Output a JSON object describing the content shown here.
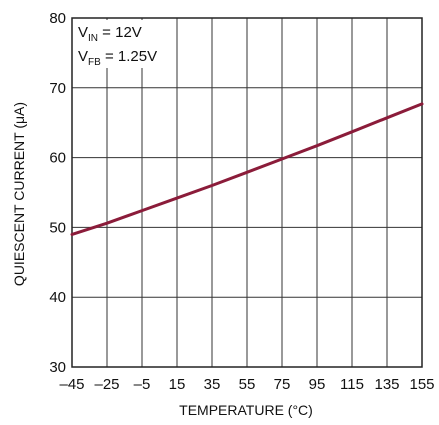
{
  "chart_data": {
    "type": "line",
    "xlabel": "TEMPERATURE (°C)",
    "ylabel": "QUIESCENT CURRENT (μA)",
    "xlim": [
      -45,
      155
    ],
    "ylim": [
      30,
      80
    ],
    "x_ticks": [
      -45,
      -25,
      -5,
      15,
      35,
      55,
      75,
      95,
      115,
      135,
      155
    ],
    "x_tick_labels": [
      "–45",
      "–25",
      "–5",
      "15",
      "35",
      "55",
      "75",
      "95",
      "115",
      "135",
      "155"
    ],
    "y_ticks": [
      30,
      40,
      50,
      60,
      70,
      80
    ],
    "y_tick_labels": [
      "30",
      "40",
      "50",
      "60",
      "70",
      "80"
    ],
    "grid": true,
    "series": [
      {
        "color": "#8b1c3a",
        "x": [
          -45,
          -25,
          -5,
          15,
          35,
          55,
          75,
          95,
          115,
          135,
          155
        ],
        "y": [
          49.0,
          50.6,
          52.4,
          54.2,
          56.0,
          57.9,
          59.8,
          61.7,
          63.7,
          65.7,
          67.7
        ]
      }
    ],
    "annotations": [
      {
        "main": "V",
        "sub": "IN",
        "rest": " = 12V"
      },
      {
        "main": "V",
        "sub": "FB",
        "rest": " = 1.25V"
      }
    ]
  }
}
